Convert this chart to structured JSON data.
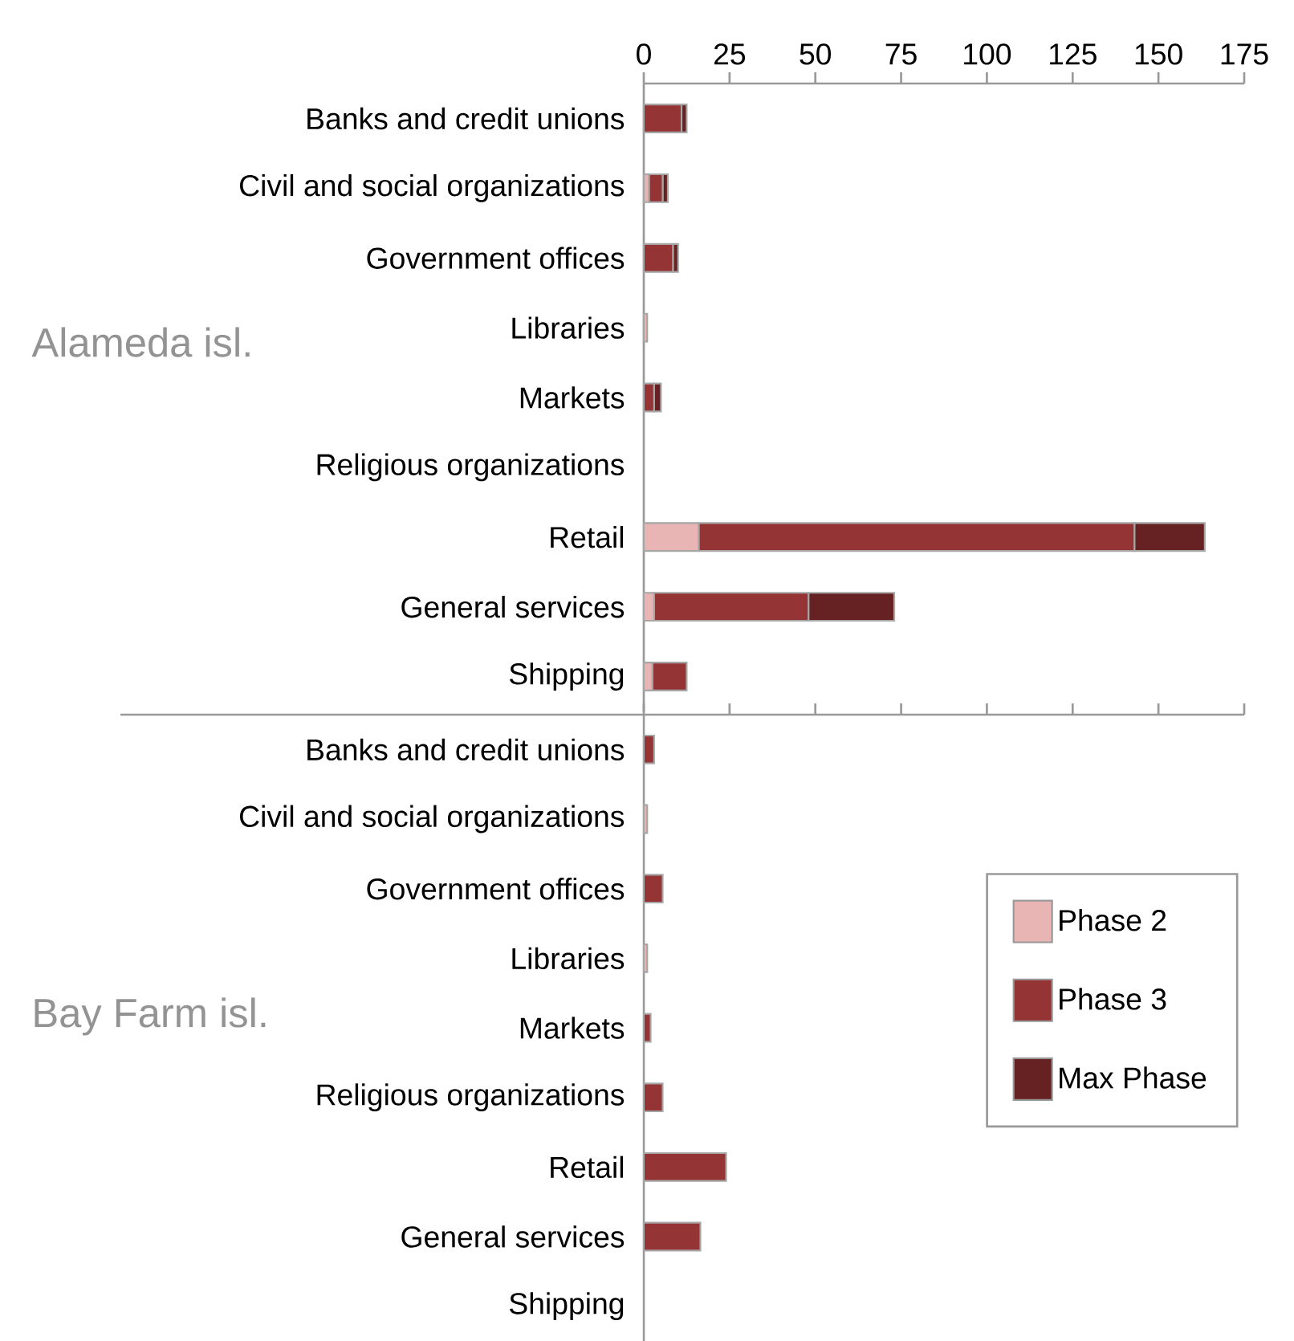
{
  "chart_data": [
    {
      "type": "bar",
      "orientation": "horizontal",
      "stacked": true,
      "ylabel": "Alameda isl.",
      "categories": [
        "Banks and credit unions",
        "Civil and social organizations",
        "Government offices",
        "Libraries",
        "Markets",
        "Religious organizations",
        "Retail",
        "General services",
        "Shipping"
      ],
      "xlim": [
        0,
        175
      ],
      "xticks": [
        0,
        25,
        50,
        75,
        100,
        125,
        150,
        175
      ],
      "series": [
        {
          "color": "#e8b4b4",
          "values": [
            0,
            1.5,
            0,
            1,
            0,
            0,
            16,
            3,
            2.5
          ]
        },
        {
          "color": "#943434",
          "values": [
            11,
            4,
            8.5,
            0,
            3,
            0,
            127,
            45,
            10
          ]
        },
        {
          "color": "#662222",
          "values": [
            1.5,
            1.5,
            1.5,
            0,
            2,
            0,
            20.5,
            25,
            0
          ]
        }
      ]
    },
    {
      "type": "bar",
      "orientation": "horizontal",
      "stacked": true,
      "ylabel": "Bay Farm isl.",
      "tick_labels": "y",
      "legend": "right",
      "categories": [
        "Banks and credit unions",
        "Civil and social organizations",
        "Government offices",
        "Libraries",
        "Markets",
        "Religious organizations",
        "Retail",
        "General services",
        "Shipping"
      ],
      "xlim": [
        0,
        175
      ],
      "xticks": [
        0,
        25,
        50,
        75,
        100,
        125,
        150,
        175
      ],
      "series": [
        {
          "name": "Phase 2",
          "color": "#e8b4b4",
          "values": [
            0,
            1,
            0,
            1,
            0,
            0,
            0,
            0,
            0
          ]
        },
        {
          "name": "Phase 3",
          "color": "#943434",
          "values": [
            3,
            0,
            5.5,
            0,
            2,
            5.5,
            24,
            16.5,
            0
          ]
        },
        {
          "name": "Max Phase",
          "color": "#662222",
          "values": [
            0,
            0,
            0,
            0,
            0,
            0,
            0,
            0,
            0
          ]
        }
      ]
    }
  ]
}
